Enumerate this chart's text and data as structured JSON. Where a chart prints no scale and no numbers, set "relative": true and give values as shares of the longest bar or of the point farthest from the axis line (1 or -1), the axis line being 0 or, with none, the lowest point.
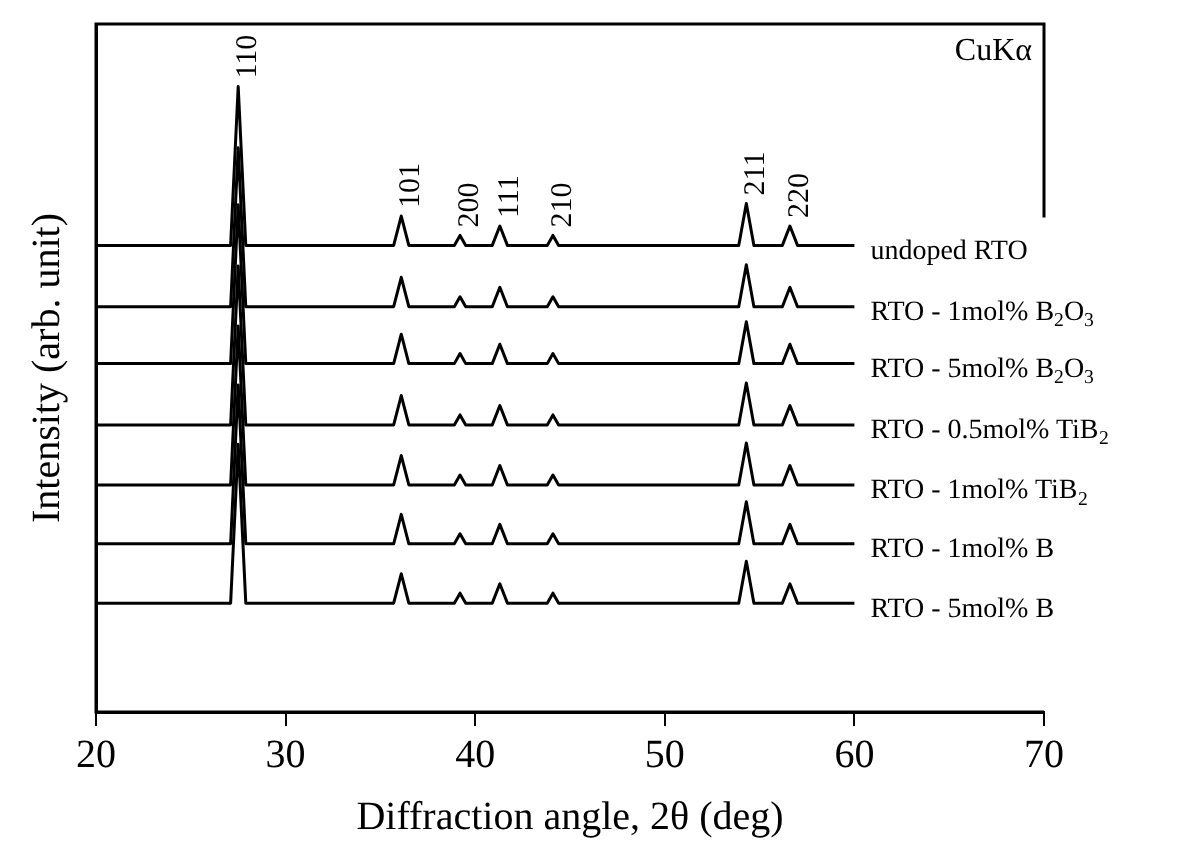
{
  "chart_data": {
    "type": "line",
    "relative": true,
    "xlabel": "Diffraction angle, 2θ (deg)",
    "ylabel": "Intensity (arb. unit)",
    "xlim": [
      20,
      70
    ],
    "xticks": [
      20,
      30,
      40,
      50,
      60,
      70
    ],
    "legend": false,
    "grid": false,
    "marker": "none",
    "line_style": "solid",
    "x": [
      20,
      27.1,
      27.5,
      27.9,
      35.7,
      36.1,
      36.5,
      38.9,
      39.2,
      39.5,
      40.9,
      41.3,
      41.7,
      43.8,
      44.1,
      44.4,
      53.9,
      54.3,
      54.7,
      56.2,
      56.6,
      57.0,
      60
    ],
    "series": [
      {
        "name": "undoped RTO",
        "color": "#000000",
        "values": [
          0.746,
          0.746,
          1.0,
          0.746,
          0.746,
          0.793,
          0.746,
          0.746,
          0.762,
          0.746,
          0.746,
          0.777,
          0.746,
          0.746,
          0.762,
          0.746,
          0.746,
          0.813,
          0.746,
          0.746,
          0.777,
          0.746,
          0.746
        ]
      },
      {
        "name": "RTO - 1mol% B$_{2}$O$_{3}$",
        "color": "#000000",
        "values": [
          0.648,
          0.648,
          0.902,
          0.648,
          0.648,
          0.695,
          0.648,
          0.648,
          0.664,
          0.648,
          0.648,
          0.679,
          0.648,
          0.648,
          0.664,
          0.648,
          0.648,
          0.715,
          0.648,
          0.648,
          0.679,
          0.648,
          0.648
        ]
      },
      {
        "name": "RTO - 5mol% B$_{2}$O$_{3}$",
        "color": "#000000",
        "values": [
          0.557,
          0.557,
          0.811,
          0.557,
          0.557,
          0.604,
          0.557,
          0.557,
          0.573,
          0.557,
          0.557,
          0.588,
          0.557,
          0.557,
          0.573,
          0.557,
          0.557,
          0.624,
          0.557,
          0.557,
          0.588,
          0.557,
          0.557
        ]
      },
      {
        "name": "RTO - 0.5mol% TiB$_{2}$",
        "color": "#000000",
        "values": [
          0.459,
          0.459,
          0.713,
          0.459,
          0.459,
          0.506,
          0.459,
          0.459,
          0.475,
          0.459,
          0.459,
          0.49,
          0.459,
          0.459,
          0.475,
          0.459,
          0.459,
          0.526,
          0.459,
          0.459,
          0.49,
          0.459,
          0.459
        ]
      },
      {
        "name": "RTO - 1mol% TiB$_{2}$",
        "color": "#000000",
        "values": [
          0.363,
          0.363,
          0.617,
          0.363,
          0.363,
          0.41,
          0.363,
          0.363,
          0.379,
          0.363,
          0.363,
          0.394,
          0.363,
          0.363,
          0.379,
          0.363,
          0.363,
          0.43,
          0.363,
          0.363,
          0.394,
          0.363,
          0.363
        ]
      },
      {
        "name": "RTO - 1mol% B",
        "color": "#000000",
        "values": [
          0.269,
          0.269,
          0.523,
          0.269,
          0.269,
          0.316,
          0.269,
          0.269,
          0.285,
          0.269,
          0.269,
          0.3,
          0.269,
          0.269,
          0.285,
          0.269,
          0.269,
          0.336,
          0.269,
          0.269,
          0.3,
          0.269,
          0.269
        ]
      },
      {
        "name": "RTO - 5mol% B",
        "color": "#000000",
        "values": [
          0.174,
          0.174,
          0.428,
          0.174,
          0.174,
          0.221,
          0.174,
          0.174,
          0.19,
          0.174,
          0.174,
          0.205,
          0.174,
          0.174,
          0.19,
          0.174,
          0.174,
          0.241,
          0.174,
          0.174,
          0.205,
          0.174,
          0.174
        ]
      }
    ],
    "annotations": [
      {
        "text": "110",
        "x": 27.5,
        "y": 1.0
      },
      {
        "text": "101",
        "x": 36.1,
        "y": 0.793
      },
      {
        "text": "200",
        "x": 39.2,
        "y": 0.762
      },
      {
        "text": "111",
        "x": 41.3,
        "y": 0.777
      },
      {
        "text": "210",
        "x": 44.1,
        "y": 0.762
      },
      {
        "text": "211",
        "x": 54.3,
        "y": 0.813
      },
      {
        "text": "220",
        "x": 56.6,
        "y": 0.777
      },
      "CuKα"
    ]
  }
}
